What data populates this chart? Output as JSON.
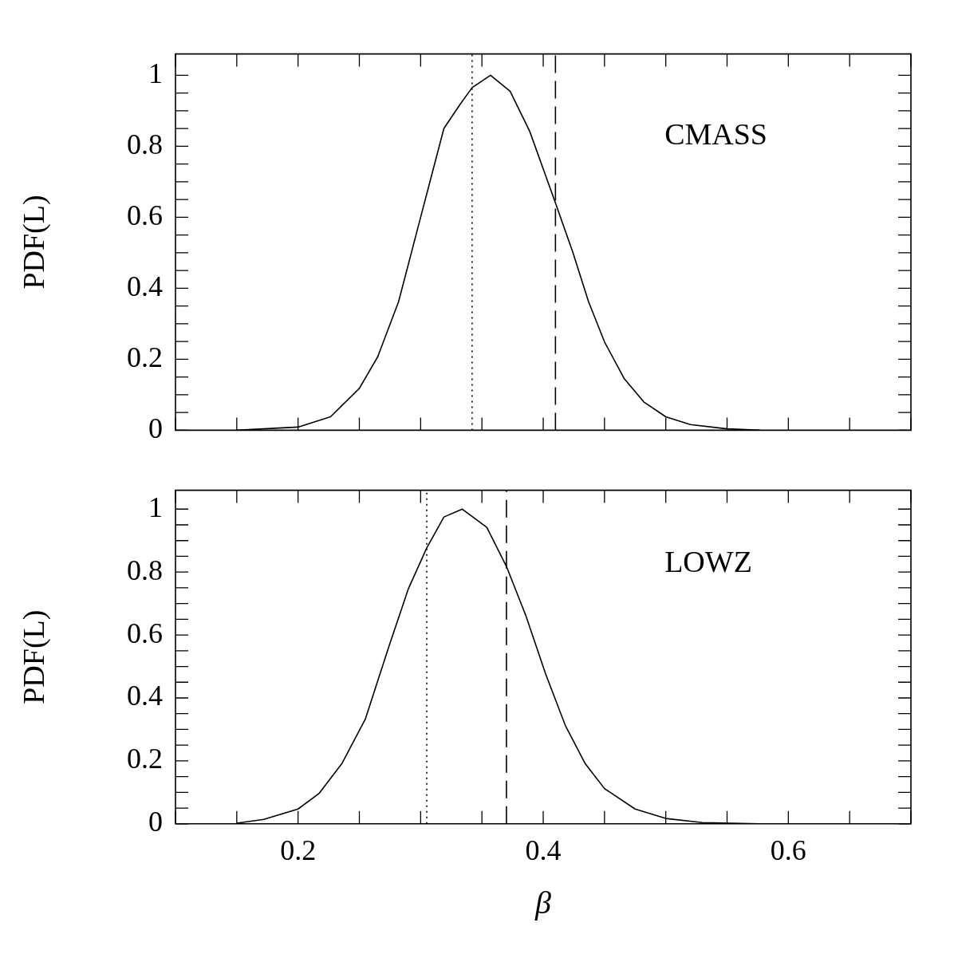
{
  "chart_data": [
    {
      "type": "line",
      "ylabel": "PDF(L)",
      "annotations": [
        "CMASS"
      ],
      "tick_labels": "y",
      "color": "#000000",
      "line_style": "solid",
      "marker": "none",
      "grid": false,
      "legend": false,
      "x": [
        0.15,
        0.2,
        0.2265,
        0.25,
        0.265,
        0.282,
        0.3,
        0.319,
        0.332,
        0.342,
        0.357,
        0.373,
        0.389,
        0.41,
        0.424,
        0.437,
        0.45,
        0.466,
        0.482,
        0.5,
        0.52,
        0.55,
        0.577
      ],
      "values": [
        0,
        0.009,
        0.038,
        0.118,
        0.207,
        0.362,
        0.6,
        0.85,
        0.917,
        0.965,
        1,
        0.955,
        0.842,
        0.64,
        0.503,
        0.362,
        0.249,
        0.146,
        0.08,
        0.038,
        0.016,
        0.004,
        0
      ],
      "xlim": [
        0.1,
        0.7
      ],
      "ylim": [
        0,
        1.06
      ],
      "xticks": [
        {
          "value": 0.1,
          "label": null
        },
        {
          "value": 0.15,
          "label": null
        },
        {
          "value": 0.2,
          "label": null
        },
        {
          "value": 0.25,
          "label": null
        },
        {
          "value": 0.3,
          "label": null
        },
        {
          "value": 0.35,
          "label": null
        },
        {
          "value": 0.4,
          "label": null
        },
        {
          "value": 0.45,
          "label": null
        },
        {
          "value": 0.5,
          "label": null
        },
        {
          "value": 0.55,
          "label": null
        },
        {
          "value": 0.6,
          "label": null
        },
        {
          "value": 0.65,
          "label": null
        },
        {
          "value": 0.7,
          "label": null
        }
      ],
      "yticks": [
        0,
        {
          "value": 0.05,
          "label": null
        },
        {
          "value": 0.1,
          "label": null
        },
        {
          "value": 0.15,
          "label": null
        },
        0.2,
        {
          "value": 0.25,
          "label": null
        },
        {
          "value": 0.3,
          "label": null
        },
        {
          "value": 0.35,
          "label": null
        },
        0.4,
        {
          "value": 0.45,
          "label": null
        },
        {
          "value": 0.5,
          "label": null
        },
        {
          "value": 0.55,
          "label": null
        },
        0.6,
        {
          "value": 0.65,
          "label": null
        },
        {
          "value": 0.7,
          "label": null
        },
        {
          "value": 0.75,
          "label": null
        },
        0.8,
        {
          "value": 0.85,
          "label": null
        },
        {
          "value": 0.9,
          "label": null
        },
        {
          "value": 0.95,
          "label": null
        },
        1
      ],
      "ref_lines": [
        {
          "axis": "x",
          "value": 0.342,
          "line_style": "dotted",
          "color": "#000000"
        },
        {
          "axis": "x",
          "value": 0.41,
          "line_style": "dashed",
          "color": "#000000"
        }
      ]
    },
    {
      "type": "line",
      "ylabel": "PDF(L)",
      "xlabel": "β",
      "annotations": [
        "LOWZ"
      ],
      "color": "#000000",
      "line_style": "solid",
      "marker": "none",
      "grid": false,
      "legend": false,
      "x": [
        0.15,
        0.172,
        0.2,
        0.217,
        0.236,
        0.255,
        0.274,
        0.29,
        0.305,
        0.319,
        0.334,
        0.354,
        0.37,
        0.386,
        0.402,
        0.418,
        0.434,
        0.45,
        0.475,
        0.5,
        0.53,
        0.577
      ],
      "values": [
        0.002,
        0.014,
        0.047,
        0.096,
        0.193,
        0.334,
        0.562,
        0.747,
        0.877,
        0.975,
        1,
        0.942,
        0.818,
        0.66,
        0.476,
        0.313,
        0.193,
        0.112,
        0.047,
        0.017,
        0.004,
        0
      ],
      "xlim": [
        0.1,
        0.7
      ],
      "ylim": [
        0,
        1.06
      ],
      "xticks": [
        {
          "value": 0.1,
          "label": null
        },
        {
          "value": 0.15,
          "label": null
        },
        0.2,
        {
          "value": 0.25,
          "label": null
        },
        {
          "value": 0.3,
          "label": null
        },
        {
          "value": 0.35,
          "label": null
        },
        0.4,
        {
          "value": 0.45,
          "label": null
        },
        {
          "value": 0.5,
          "label": null
        },
        {
          "value": 0.55,
          "label": null
        },
        0.6,
        {
          "value": 0.65,
          "label": null
        },
        {
          "value": 0.7,
          "label": null
        }
      ],
      "yticks": [
        0,
        {
          "value": 0.05,
          "label": null
        },
        {
          "value": 0.1,
          "label": null
        },
        {
          "value": 0.15,
          "label": null
        },
        0.2,
        {
          "value": 0.25,
          "label": null
        },
        {
          "value": 0.3,
          "label": null
        },
        {
          "value": 0.35,
          "label": null
        },
        0.4,
        {
          "value": 0.45,
          "label": null
        },
        {
          "value": 0.5,
          "label": null
        },
        {
          "value": 0.55,
          "label": null
        },
        0.6,
        {
          "value": 0.65,
          "label": null
        },
        {
          "value": 0.7,
          "label": null
        },
        {
          "value": 0.75,
          "label": null
        },
        0.8,
        {
          "value": 0.85,
          "label": null
        },
        {
          "value": 0.9,
          "label": null
        },
        {
          "value": 0.95,
          "label": null
        },
        1
      ],
      "ref_lines": [
        {
          "axis": "x",
          "value": 0.305,
          "line_style": "dotted",
          "color": "#000000"
        },
        {
          "axis": "x",
          "value": 0.37,
          "line_style": "dashed",
          "color": "#000000"
        }
      ]
    }
  ]
}
